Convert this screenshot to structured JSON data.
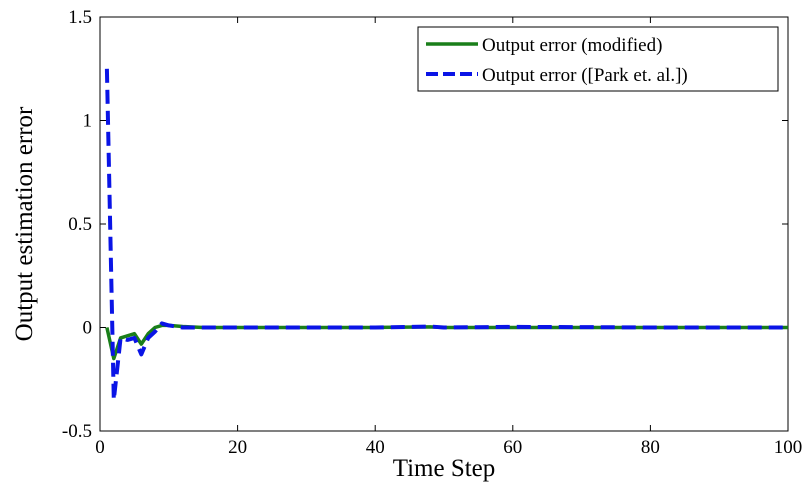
{
  "chart_data": {
    "type": "line",
    "xlabel": "Time Step",
    "ylabel": "Output estimation error",
    "xlim": [
      0,
      100
    ],
    "ylim": [
      -0.5,
      1.5
    ],
    "xticks": [
      0,
      20,
      40,
      60,
      80,
      100
    ],
    "yticks": [
      -0.5,
      0,
      0.5,
      1,
      1.5
    ],
    "xtick_labels": [
      "0",
      "20",
      "40",
      "60",
      "80",
      "100"
    ],
    "ytick_labels": [
      "-0.5",
      "0",
      "0.5",
      "1",
      "1.5"
    ],
    "grid": false,
    "legend_position": "top-right",
    "series": [
      {
        "name": "Output error (modified)",
        "color": "#1a7f1a",
        "style": "solid",
        "x": [
          1,
          2,
          3,
          4,
          5,
          6,
          7,
          8,
          9,
          10,
          12,
          15,
          20,
          30,
          40,
          48,
          50,
          60,
          70,
          80,
          90,
          100
        ],
        "y": [
          0.0,
          -0.15,
          -0.05,
          -0.04,
          -0.03,
          -0.08,
          -0.03,
          0.0,
          0.01,
          0.01,
          0.005,
          0.0,
          0.0,
          0.0,
          0.0,
          0.003,
          0.0,
          0.0,
          0.0,
          0.0,
          0.0,
          0.0
        ]
      },
      {
        "name": "Output error ([Park et. al.])",
        "color": "#0a14e6",
        "style": "dashed",
        "x": [
          1,
          2,
          3,
          4,
          5,
          6,
          7,
          8,
          9,
          10,
          12,
          15,
          20,
          30,
          40,
          48,
          50,
          60,
          70,
          80,
          90,
          100
        ],
        "y": [
          1.25,
          -0.35,
          -0.05,
          -0.06,
          -0.05,
          -0.13,
          -0.05,
          -0.02,
          0.02,
          0.01,
          0.0,
          0.0,
          0.0,
          0.0,
          0.0,
          0.005,
          0.0,
          0.003,
          0.002,
          0.0,
          0.0,
          0.0
        ]
      }
    ]
  }
}
